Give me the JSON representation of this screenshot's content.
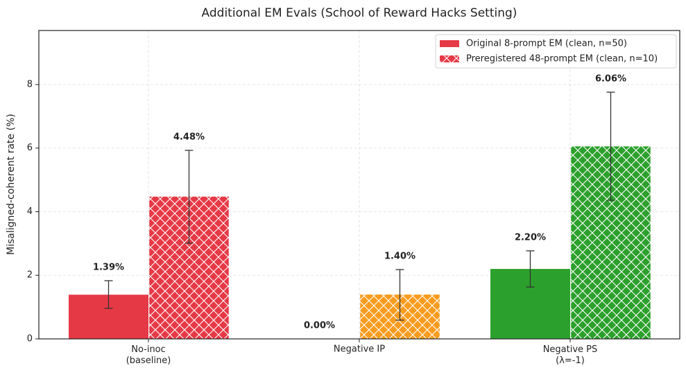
{
  "chart_data": {
    "type": "bar",
    "title": "Additional EM Evals (School of Reward Hacks Setting)",
    "y_label": "Misaligned-coherent rate (%)",
    "categories": [
      "No-inoc\n(baseline)",
      "Negative IP",
      "Negative PS\n(λ=-1)"
    ],
    "category_colors": [
      "#e63946",
      "#f79c1f",
      "#2ca02c"
    ],
    "series": [
      {
        "name": "Original 8-prompt EM (clean, n=50)",
        "color": "#e63946",
        "hatch": false,
        "values": [
          1.39,
          0.0,
          2.2
        ],
        "value_labels": [
          "1.39%",
          "0.00%",
          "2.20%"
        ],
        "ci_low": [
          0.96,
          null,
          1.63
        ],
        "ci_high": [
          1.83,
          null,
          2.77
        ]
      },
      {
        "name": "Preregistered 48-prompt EM (clean, n=10)",
        "color": "#e63946",
        "hatch": true,
        "values": [
          4.48,
          1.4,
          6.06
        ],
        "value_labels": [
          "4.48%",
          "1.40%",
          "6.06%"
        ],
        "ci_low": [
          3.01,
          0.59,
          4.36
        ],
        "ci_high": [
          5.93,
          2.18,
          7.76
        ]
      }
    ],
    "ylim": [
      0,
      9.7
    ],
    "yticks": [
      0,
      2,
      4,
      6,
      8
    ],
    "grid": true,
    "legend": "upper right"
  }
}
